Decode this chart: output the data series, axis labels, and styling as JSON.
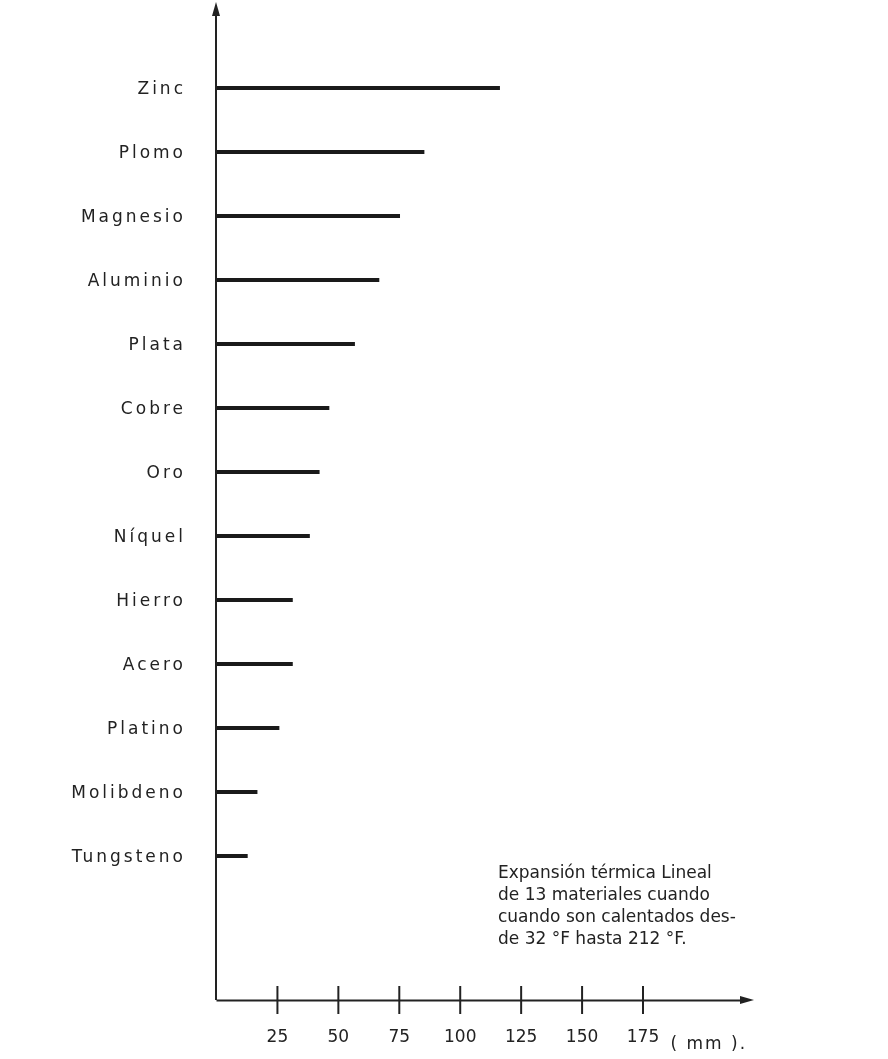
{
  "chart_data": {
    "type": "bar",
    "orientation": "horizontal",
    "xlabel": "( mm ).",
    "categories": [
      "Zinc",
      "Plomo",
      "Magnesio",
      "Aluminio",
      "Plata",
      "Cobre",
      "Oro",
      "Níquel",
      "Hierro",
      "Acero",
      "Platino",
      "Molibdeno",
      "Tungsteno"
    ],
    "values": [
      116.5,
      85.5,
      75.5,
      67,
      57,
      46.5,
      42.5,
      38.5,
      31.5,
      31.5,
      26,
      17,
      13
    ],
    "color": "#1a1a1a",
    "xlim": [
      0,
      215
    ],
    "xticks": [
      25,
      50,
      75,
      100,
      125,
      150,
      175
    ],
    "grid": false,
    "annotations": [
      "Expansión térmica Lineal\nde 13 materiales cuando\ncuando son calentados des-\nde 32 °F hasta 212 °F."
    ]
  }
}
